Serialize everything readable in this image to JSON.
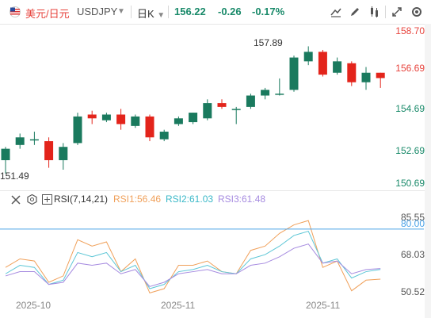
{
  "header": {
    "pair_cn": "美元/日元",
    "pair_code": "USDJPY",
    "caret": "▼",
    "period": "日K",
    "period_caret": "▼",
    "price": "156.22",
    "change": "-0.26",
    "change_pct": "-0.17%"
  },
  "price_axis": {
    "labels": [
      "158.70",
      "156.69",
      "154.69",
      "152.69",
      "150.69"
    ],
    "high_label": "157.89",
    "low_label": "151.49"
  },
  "rsi": {
    "title": "RSI(7,14,21)",
    "rsi1": "RSI1:56.46",
    "rsi2": "RSI2:61.03",
    "rsi3": "RSI3:61.48",
    "axis_labels": [
      "85.55",
      "80.00",
      "68.03",
      "50.52"
    ]
  },
  "x_axis": {
    "labels": [
      "2025-10",
      "2025-11",
      "2025-11"
    ]
  },
  "colors": {
    "up": "#1a7a5e",
    "down": "#e3241b",
    "rsi1": "#f0a05a",
    "rsi2": "#5cc6d6",
    "rsi3": "#a68be0",
    "line80": "#4aa3e8"
  },
  "chart_data": {
    "type": "candlestick",
    "candles": [
      {
        "o": 151.9,
        "h": 152.6,
        "l": 151.2,
        "c": 152.5
      },
      {
        "o": 152.7,
        "h": 153.3,
        "l": 152.5,
        "c": 153.1
      },
      {
        "o": 153.0,
        "h": 153.4,
        "l": 152.7,
        "c": 153.0
      },
      {
        "o": 152.9,
        "h": 153.1,
        "l": 151.5,
        "c": 151.9
      },
      {
        "o": 151.9,
        "h": 152.8,
        "l": 151.4,
        "c": 152.6
      },
      {
        "o": 152.8,
        "h": 154.4,
        "l": 152.7,
        "c": 154.2
      },
      {
        "o": 154.3,
        "h": 154.5,
        "l": 153.8,
        "c": 154.1
      },
      {
        "o": 154.0,
        "h": 154.4,
        "l": 153.9,
        "c": 154.3
      },
      {
        "o": 154.3,
        "h": 154.6,
        "l": 153.5,
        "c": 153.8
      },
      {
        "o": 153.7,
        "h": 154.3,
        "l": 153.6,
        "c": 154.2
      },
      {
        "o": 154.2,
        "h": 154.3,
        "l": 152.9,
        "c": 153.1
      },
      {
        "o": 153.0,
        "h": 153.5,
        "l": 152.9,
        "c": 153.4
      },
      {
        "o": 153.8,
        "h": 154.2,
        "l": 153.7,
        "c": 154.1
      },
      {
        "o": 153.9,
        "h": 154.4,
        "l": 153.8,
        "c": 154.4
      },
      {
        "o": 154.1,
        "h": 155.1,
        "l": 154.0,
        "c": 154.9
      },
      {
        "o": 154.9,
        "h": 155.1,
        "l": 154.6,
        "c": 154.7
      },
      {
        "o": 154.6,
        "h": 154.7,
        "l": 153.8,
        "c": 154.6
      },
      {
        "o": 154.7,
        "h": 155.4,
        "l": 154.6,
        "c": 155.3
      },
      {
        "o": 155.3,
        "h": 155.7,
        "l": 155.1,
        "c": 155.6
      },
      {
        "o": 155.4,
        "h": 156.2,
        "l": 155.3,
        "c": 155.4
      },
      {
        "o": 155.6,
        "h": 157.4,
        "l": 155.5,
        "c": 157.3
      },
      {
        "o": 157.1,
        "h": 157.89,
        "l": 156.9,
        "c": 157.6
      },
      {
        "o": 157.6,
        "h": 157.7,
        "l": 156.3,
        "c": 156.4
      },
      {
        "o": 156.5,
        "h": 157.3,
        "l": 156.4,
        "c": 157.1
      },
      {
        "o": 157.0,
        "h": 157.1,
        "l": 155.8,
        "c": 156.0
      },
      {
        "o": 156.0,
        "h": 156.8,
        "l": 155.6,
        "c": 156.5
      },
      {
        "o": 156.5,
        "h": 156.5,
        "l": 155.7,
        "c": 156.22
      }
    ],
    "rsi1": [
      62,
      66,
      65,
      55,
      58,
      75,
      72,
      74,
      60,
      66,
      50,
      52,
      63,
      63,
      65,
      60,
      59,
      70,
      72,
      78,
      82,
      84,
      62,
      65,
      51,
      56,
      56.46
    ],
    "rsi2": [
      59,
      63,
      62,
      54,
      56,
      69,
      67,
      69,
      60,
      63,
      52,
      54,
      60,
      61,
      63,
      60,
      59,
      66,
      68,
      72,
      77,
      79,
      64,
      66,
      57,
      60,
      61.03
    ],
    "rsi3": [
      58,
      60,
      60,
      54,
      55,
      64,
      63,
      64,
      59,
      61,
      53,
      55,
      59,
      60,
      61,
      59,
      59,
      63,
      64,
      67,
      71,
      73,
      64,
      65,
      59,
      61,
      61.48
    ],
    "price_ylim": [
      150.69,
      158.7
    ],
    "rsi_ylim": [
      50.52,
      85.55
    ]
  }
}
